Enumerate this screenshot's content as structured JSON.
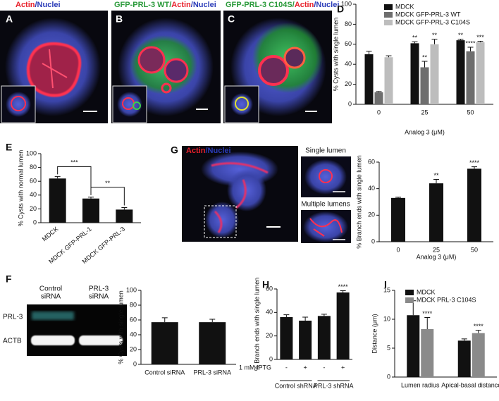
{
  "images": [
    {
      "letter": "A",
      "label": [
        {
          "text": "Actin",
          "color": "#e8202a"
        },
        {
          "text": "/Nuclei",
          "color": "#2a3bb8"
        }
      ]
    },
    {
      "letter": "B",
      "label": [
        {
          "text": "GFP-PRL-3 WT/",
          "color": "#2a9a3a"
        },
        {
          "text": "Actin",
          "color": "#e8202a"
        },
        {
          "text": "/Nuclei",
          "color": "#2a3bb8"
        }
      ]
    },
    {
      "letter": "C",
      "label": [
        {
          "text": "GFP-PRL-3 C104S/",
          "color": "#2a9a3a"
        },
        {
          "text": "Actin",
          "color": "#e8202a"
        },
        {
          "text": "/Nuclei",
          "color": "#2a3bb8"
        }
      ]
    },
    {
      "letter": "G",
      "label": [
        {
          "text": "Actin",
          "color": "#e8202a"
        },
        {
          "text": "/Nuclei",
          "color": "#2a3bb8"
        }
      ],
      "insets": [
        "Single lumen",
        "Multiple lumens"
      ]
    },
    {
      "letter": "F",
      "lanes": [
        [
          "Control",
          "siRNA"
        ],
        [
          "PRL-3",
          "siRNA"
        ]
      ],
      "rows": [
        "PRL-3",
        "ACTB"
      ]
    }
  ],
  "chart_data": [
    {
      "type": "bar",
      "panel": "D",
      "y_label": "% Cysts with single lumen",
      "x_label": "Analog 3 (μM)",
      "categories": [
        "0",
        "25",
        "50"
      ],
      "series": [
        {
          "name": "MDCK",
          "color": "#111111",
          "values": [
            50,
            61,
            64
          ],
          "errors": [
            3,
            1.5,
            1
          ],
          "significance": [
            null,
            "**",
            "**"
          ]
        },
        {
          "name": "MDCK GFP-PRL-3 WT",
          "color": "#6e6e6e",
          "values": [
            12,
            37,
            53
          ],
          "errors": [
            0.8,
            6,
            4
          ],
          "significance": [
            null,
            "**",
            "****"
          ]
        },
        {
          "name": "MDCK GFP-PRL-3 C104S",
          "color": "#bdbdbd",
          "values": [
            47,
            60,
            62
          ],
          "errors": [
            1.5,
            5,
            1
          ],
          "significance": [
            null,
            "**",
            "***"
          ]
        }
      ],
      "ylim": [
        0,
        100
      ],
      "yticks": [
        0,
        20,
        40,
        60,
        80,
        100
      ],
      "legend": "top-right"
    },
    {
      "type": "bar",
      "panel": "E",
      "y_label": "% Cysts with normal lumen",
      "categories": [
        "MDCK",
        "MDCK GFP-PRL-1",
        "MDCK GFP-PRL-3"
      ],
      "values": [
        64,
        35,
        19
      ],
      "errors": [
        3,
        2,
        3
      ],
      "color": "#111111",
      "brackets": [
        {
          "from": 0,
          "to": 1,
          "label": "***"
        },
        {
          "from": 1,
          "to": 2,
          "label": "**"
        }
      ],
      "ylim": [
        0,
        100
      ],
      "yticks": [
        0,
        20,
        40,
        60,
        80,
        100
      ]
    },
    {
      "type": "bar",
      "y_label": "% Branch ends with single lumen",
      "x_label": "Analog 3 (μM)",
      "categories": [
        "0",
        "25",
        "50"
      ],
      "values": [
        33,
        44,
        55
      ],
      "errors": [
        0.5,
        3,
        1.5
      ],
      "color": "#111111",
      "significance": [
        null,
        "**",
        "****"
      ],
      "ylim": [
        0,
        60
      ],
      "yticks": [
        0,
        20,
        40,
        60
      ]
    },
    {
      "type": "bar",
      "y_label": "% Cysts with single lumen",
      "categories": [
        "Control siRNA",
        "PRL-3 siRNA"
      ],
      "values": [
        57,
        57
      ],
      "errors": [
        6,
        4
      ],
      "color": "#111111",
      "ylim": [
        0,
        100
      ],
      "yticks": [
        0,
        20,
        40,
        60,
        80,
        100
      ]
    },
    {
      "type": "bar",
      "panel": "H",
      "y_label": "% Branch ends with single lumen",
      "categories": [
        "-",
        "+",
        "-",
        "+"
      ],
      "groups": [
        "Control shRNA",
        "PRL-3 shRNA"
      ],
      "row_label": "1 mM IPTG",
      "values": [
        36,
        33,
        37,
        57
      ],
      "errors": [
        2,
        3,
        1.5,
        1.5
      ],
      "color": "#111111",
      "significance": [
        null,
        null,
        null,
        "****"
      ],
      "ylim": [
        0,
        60
      ],
      "yticks": [
        0,
        20,
        40,
        60
      ]
    },
    {
      "type": "bar",
      "panel": "I",
      "y_label": "Distance (μm)",
      "categories": [
        "Lumen radius",
        "Apical-basal distance"
      ],
      "series": [
        {
          "name": "MDCK",
          "color": "#111111",
          "values": [
            10.7,
            6.3
          ],
          "errors": [
            2.5,
            0.3
          ],
          "significance": [
            null,
            null
          ]
        },
        {
          "name": "MDCK PRL-3 C104S",
          "color": "#8a8a8a",
          "values": [
            8.3,
            7.6
          ],
          "errors": [
            2,
            0.5
          ],
          "significance": [
            "****",
            "****"
          ]
        }
      ],
      "ylim": [
        0,
        15
      ],
      "yticks": [
        0,
        5,
        10,
        15
      ],
      "legend": "top-right"
    }
  ]
}
